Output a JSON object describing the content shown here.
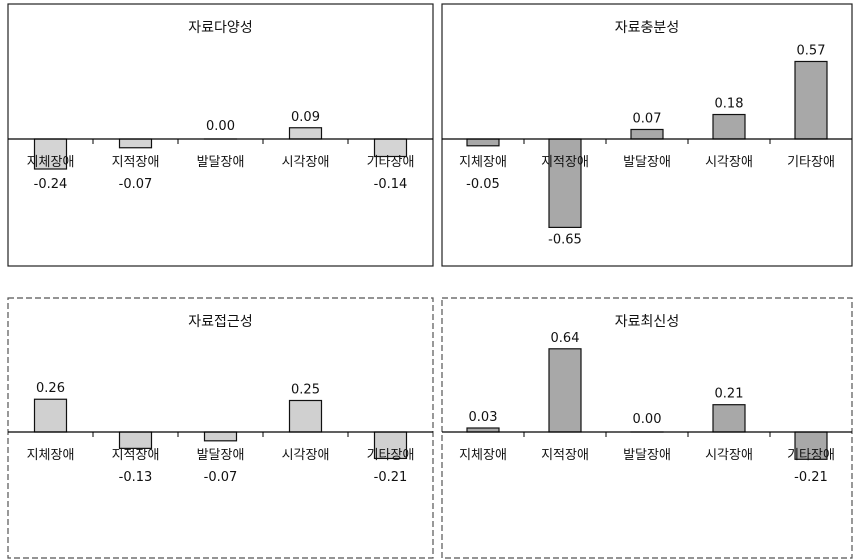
{
  "chart_data": [
    {
      "type": "bar",
      "title": "자료다양성",
      "categories": [
        "지체장애",
        "지적장애",
        "발달장애",
        "시각장애",
        "기타장애"
      ],
      "values": [
        -0.24,
        -0.07,
        0.0,
        0.09,
        -0.14
      ],
      "value_labels": [
        "-0.24",
        "-0.07",
        "0.00",
        "0.09",
        "-0.14"
      ],
      "ylim": [
        -0.7,
        0.6
      ],
      "grid": false,
      "bar_color": "#d4d4d4"
    },
    {
      "type": "bar",
      "title": "자료충분성",
      "categories": [
        "지체장애",
        "지적장애",
        "발달장애",
        "시각장애",
        "기타장애"
      ],
      "values": [
        -0.05,
        -0.65,
        0.07,
        0.18,
        0.57
      ],
      "value_labels": [
        "-0.05",
        "-0.65",
        "0.07",
        "0.18",
        "0.57"
      ],
      "ylim": [
        -0.7,
        0.6
      ],
      "grid": false,
      "bar_color": "#a8a8a8"
    },
    {
      "type": "bar",
      "title": "자료접근성",
      "categories": [
        "지체장애",
        "지적장애",
        "발달장애",
        "시각장애",
        "기타장애"
      ],
      "values": [
        0.26,
        -0.13,
        -0.07,
        0.25,
        -0.21
      ],
      "value_labels": [
        "0.26",
        "-0.13",
        "-0.07",
        "0.25",
        "-0.21"
      ],
      "ylim": [
        -0.7,
        0.6
      ],
      "grid": false,
      "bar_color": "#d0d0d0"
    },
    {
      "type": "bar",
      "title": "자료최신성",
      "categories": [
        "지체장애",
        "지적장애",
        "발달장애",
        "시각장애",
        "기타장애"
      ],
      "values": [
        0.03,
        0.64,
        0.0,
        0.21,
        -0.21
      ],
      "value_labels": [
        "0.03",
        "0.64",
        "0.00",
        "0.21",
        "-0.21"
      ],
      "ylim": [
        -0.7,
        0.7
      ],
      "grid": false,
      "bar_color": "#a8a8a8"
    }
  ]
}
